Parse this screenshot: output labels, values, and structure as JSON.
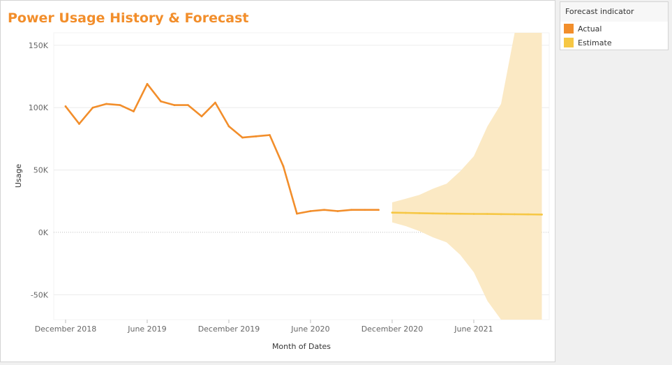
{
  "title": "Power Usage History & Forecast",
  "legend": {
    "title": "Forecast indicator",
    "items": [
      {
        "label": "Actual",
        "color": "#f28e2b"
      },
      {
        "label": "Estimate",
        "color": "#f6c744"
      }
    ]
  },
  "chart_data": {
    "type": "line",
    "xlabel": "Month of Dates",
    "ylabel": "Usage",
    "x_ticks": [
      "December 2018",
      "June 2019",
      "December 2019",
      "June 2020",
      "December 2020",
      "June 2021"
    ],
    "y_ticks": [
      "150K",
      "100K",
      "50K",
      "0K",
      "-50K"
    ],
    "ylim": [
      -70000,
      160000
    ],
    "grid": true,
    "legend_position": "right",
    "series": [
      {
        "name": "Actual",
        "color": "#f28e2b",
        "x": [
          "2018-12",
          "2019-01",
          "2019-02",
          "2019-03",
          "2019-04",
          "2019-05",
          "2019-06",
          "2019-07",
          "2019-08",
          "2019-09",
          "2019-10",
          "2019-11",
          "2019-12",
          "2020-01",
          "2020-02",
          "2020-03",
          "2020-04",
          "2020-05",
          "2020-06",
          "2020-07",
          "2020-08",
          "2020-09",
          "2020-10",
          "2020-11"
        ],
        "values": [
          101000,
          87000,
          100000,
          103000,
          102000,
          97000,
          119000,
          105000,
          102000,
          102000,
          93000,
          104000,
          85000,
          76000,
          77000,
          78000,
          53000,
          15000,
          17000,
          18000,
          17000,
          18000,
          18000,
          18000
        ]
      },
      {
        "name": "Estimate",
        "color": "#f6c744",
        "x": [
          "2020-12",
          "2021-01",
          "2021-02",
          "2021-03",
          "2021-04",
          "2021-05",
          "2021-06",
          "2021-07",
          "2021-08",
          "2021-09",
          "2021-10",
          "2021-11"
        ],
        "values": [
          15800,
          15600,
          15400,
          15200,
          15000,
          14900,
          14800,
          14700,
          14600,
          14500,
          14400,
          14300
        ],
        "lower": [
          8000,
          5000,
          1000,
          -4000,
          -8000,
          -18000,
          -32000,
          -55000,
          -70000,
          -70000,
          -70000,
          -70000
        ],
        "upper": [
          24000,
          27000,
          30000,
          35000,
          39000,
          49000,
          61000,
          85000,
          103000,
          160000,
          160000,
          160000
        ]
      }
    ]
  }
}
